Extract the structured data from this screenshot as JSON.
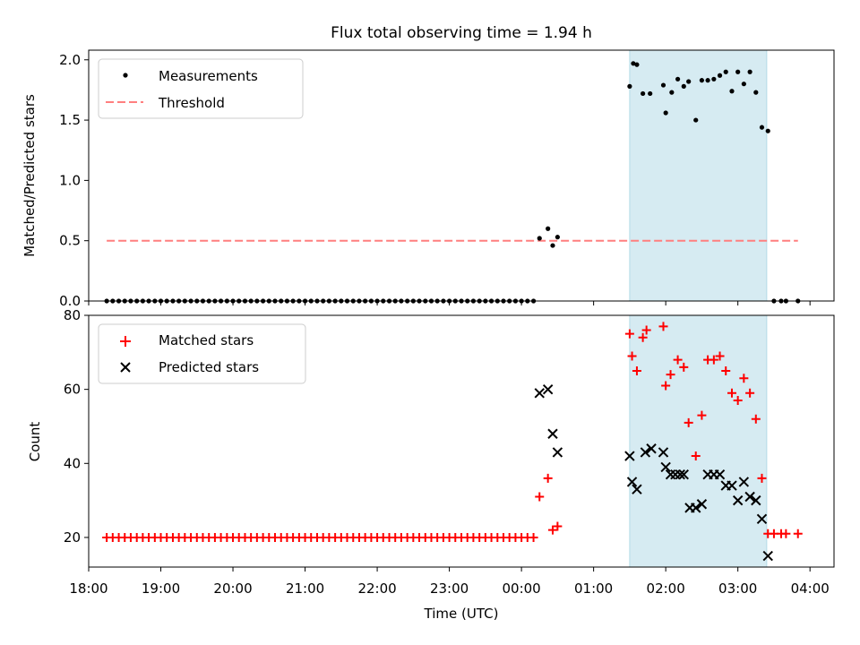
{
  "title": "Flux total observing time = 1.94 h",
  "chart_data": [
    {
      "type": "scatter",
      "panel": "top",
      "ylabel": "Matched/Predicted stars",
      "ylim": [
        0,
        2.08
      ],
      "yticks": [
        0.0,
        0.5,
        1.0,
        1.5,
        2.0
      ],
      "ytick_labels": [
        "0.0",
        "0.5",
        "1.0",
        "1.5",
        "2.0"
      ],
      "legend_position": "upper-left",
      "shaded_interval_x": [
        1.5,
        3.4
      ],
      "series": [
        {
          "name": "Measurements",
          "marker": "dot",
          "color": "#000000",
          "x": [
            18.25,
            18.333,
            18.417,
            18.5,
            18.583,
            18.667,
            18.75,
            18.833,
            18.917,
            19.0,
            19.083,
            19.167,
            19.25,
            19.333,
            19.417,
            19.5,
            19.583,
            19.667,
            19.75,
            19.833,
            19.917,
            20.0,
            20.083,
            20.167,
            20.25,
            20.333,
            20.417,
            20.5,
            20.583,
            20.667,
            20.75,
            20.833,
            20.917,
            21.0,
            21.083,
            21.167,
            21.25,
            21.333,
            21.417,
            21.5,
            21.583,
            21.667,
            21.75,
            21.833,
            21.917,
            22.0,
            22.083,
            22.167,
            22.25,
            22.333,
            22.417,
            22.5,
            22.583,
            22.667,
            22.75,
            22.833,
            22.917,
            23.0,
            23.083,
            23.167,
            23.25,
            23.333,
            23.417,
            23.5,
            23.583,
            23.667,
            23.75,
            23.833,
            23.917,
            24.0,
            24.083,
            24.167,
            24.25,
            24.367,
            24.433,
            24.5,
            25.5,
            25.55,
            25.6,
            25.683,
            25.783,
            25.967,
            26.0,
            26.083,
            26.167,
            26.25,
            26.317,
            26.417,
            26.5,
            26.583,
            26.667,
            26.75,
            26.833,
            26.917,
            27.0,
            27.083,
            27.167,
            27.25,
            27.333,
            27.417,
            27.5,
            27.6,
            27.667,
            27.833
          ],
          "y": [
            0,
            0,
            0,
            0,
            0,
            0,
            0,
            0,
            0,
            0,
            0,
            0,
            0,
            0,
            0,
            0,
            0,
            0,
            0,
            0,
            0,
            0,
            0,
            0,
            0,
            0,
            0,
            0,
            0,
            0,
            0,
            0,
            0,
            0,
            0,
            0,
            0,
            0,
            0,
            0,
            0,
            0,
            0,
            0,
            0,
            0,
            0,
            0,
            0,
            0,
            0,
            0,
            0,
            0,
            0,
            0,
            0,
            0,
            0,
            0,
            0,
            0,
            0,
            0,
            0,
            0,
            0,
            0,
            0,
            0,
            0,
            0,
            0.52,
            0.6,
            0.46,
            0.53,
            1.78,
            1.97,
            1.96,
            1.72,
            1.72,
            1.79,
            1.56,
            1.73,
            1.84,
            1.78,
            1.82,
            1.5,
            1.83,
            1.83,
            1.84,
            1.87,
            1.9,
            1.74,
            1.9,
            1.8,
            1.9,
            1.73,
            1.44,
            1.41,
            0,
            0,
            0,
            0
          ]
        },
        {
          "name": "Threshold",
          "marker": "dashed-line",
          "color": "#ff7f7f",
          "x": [
            18.25,
            27.833
          ],
          "y": [
            0.5,
            0.5
          ]
        }
      ]
    },
    {
      "type": "scatter",
      "panel": "bottom",
      "xlabel": "Time (UTC)",
      "ylabel": "Count",
      "xlim": [
        18.0,
        28.333
      ],
      "ylim": [
        12,
        80
      ],
      "xticks": [
        18,
        19,
        20,
        21,
        22,
        23,
        24,
        25,
        26,
        27,
        28
      ],
      "xtick_labels": [
        "18:00",
        "19:00",
        "20:00",
        "21:00",
        "22:00",
        "23:00",
        "00:00",
        "01:00",
        "02:00",
        "03:00",
        "04:00"
      ],
      "yticks": [
        20,
        40,
        60,
        80
      ],
      "ytick_labels": [
        "20",
        "40",
        "60",
        "80"
      ],
      "legend_position": "upper-left",
      "shaded_interval_x": [
        1.5,
        3.4
      ],
      "series": [
        {
          "name": "Matched stars",
          "marker": "plus",
          "color": "#ff0000",
          "x": [
            18.25,
            18.333,
            18.417,
            18.5,
            18.583,
            18.667,
            18.75,
            18.833,
            18.917,
            19.0,
            19.083,
            19.167,
            19.25,
            19.333,
            19.417,
            19.5,
            19.583,
            19.667,
            19.75,
            19.833,
            19.917,
            20.0,
            20.083,
            20.167,
            20.25,
            20.333,
            20.417,
            20.5,
            20.583,
            20.667,
            20.75,
            20.833,
            20.917,
            21.0,
            21.083,
            21.167,
            21.25,
            21.333,
            21.417,
            21.5,
            21.583,
            21.667,
            21.75,
            21.833,
            21.917,
            22.0,
            22.083,
            22.167,
            22.25,
            22.333,
            22.417,
            22.5,
            22.583,
            22.667,
            22.75,
            22.833,
            22.917,
            23.0,
            23.083,
            23.167,
            23.25,
            23.333,
            23.417,
            23.5,
            23.583,
            23.667,
            23.75,
            23.833,
            23.917,
            24.0,
            24.083,
            24.167,
            24.25,
            24.367,
            24.433,
            24.5,
            25.5,
            25.533,
            25.6,
            25.683,
            25.733,
            25.967,
            26.0,
            26.067,
            26.167,
            26.25,
            26.317,
            26.417,
            26.5,
            26.583,
            26.667,
            26.75,
            26.833,
            26.917,
            27.0,
            27.083,
            27.167,
            27.25,
            27.333,
            27.417,
            27.5,
            27.6,
            27.667,
            27.833
          ],
          "y": [
            20,
            20,
            20,
            20,
            20,
            20,
            20,
            20,
            20,
            20,
            20,
            20,
            20,
            20,
            20,
            20,
            20,
            20,
            20,
            20,
            20,
            20,
            20,
            20,
            20,
            20,
            20,
            20,
            20,
            20,
            20,
            20,
            20,
            20,
            20,
            20,
            20,
            20,
            20,
            20,
            20,
            20,
            20,
            20,
            20,
            20,
            20,
            20,
            20,
            20,
            20,
            20,
            20,
            20,
            20,
            20,
            20,
            20,
            20,
            20,
            20,
            20,
            20,
            20,
            20,
            20,
            20,
            20,
            20,
            20,
            20,
            20,
            31,
            36,
            22,
            23,
            75,
            69,
            65,
            74,
            76,
            77,
            61,
            64,
            68,
            66,
            51,
            42,
            53,
            68,
            68,
            69,
            65,
            59,
            57,
            63,
            59,
            52,
            36,
            21,
            21,
            21,
            21,
            21
          ]
        },
        {
          "name": "Predicted stars",
          "marker": "x",
          "color": "#000000",
          "x": [
            24.25,
            24.367,
            24.433,
            24.5,
            25.5,
            25.533,
            25.6,
            25.717,
            25.8,
            25.967,
            26.0,
            26.067,
            26.133,
            26.2,
            26.25,
            26.333,
            26.417,
            26.5,
            26.583,
            26.667,
            26.75,
            26.833,
            26.917,
            27.0,
            27.083,
            27.167,
            27.25,
            27.333,
            27.417
          ],
          "y": [
            59,
            60,
            48,
            43,
            42,
            35,
            33,
            43,
            44,
            43,
            39,
            37,
            37,
            37,
            37,
            28,
            28,
            29,
            37,
            37,
            37,
            34,
            34,
            30,
            35,
            31,
            30,
            25,
            15
          ]
        }
      ]
    }
  ]
}
